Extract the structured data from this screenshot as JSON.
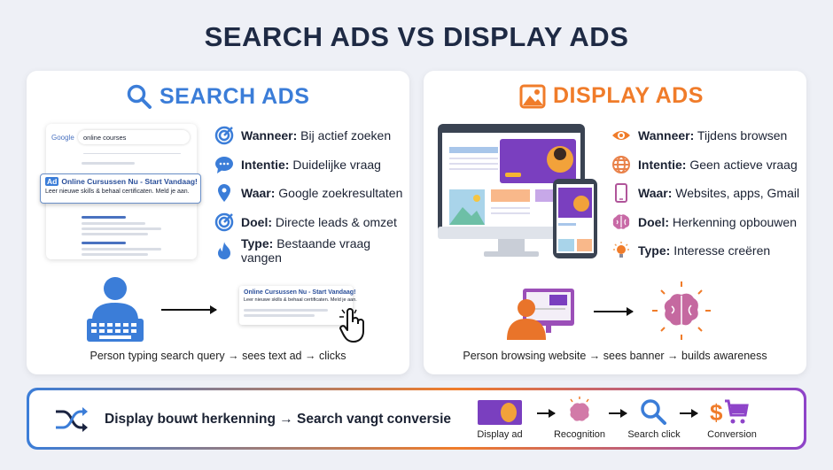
{
  "title": "SEARCH ADS VS DISPLAY ADS",
  "colors": {
    "search": "#3b7dd8",
    "display": "#f07c2a",
    "accent_purple": "#8e44c9",
    "title": "#1e2a44"
  },
  "search": {
    "heading": "SEARCH ADS",
    "icon": "search-icon",
    "mock": {
      "logo": "Google",
      "query": "online courses",
      "ad_badge": "Ad",
      "ad_title": "Online Cursussen Nu - Start Vandaag!",
      "ad_desc": "Leer nieuwe skills & behaal certificaten. Meld je aan."
    },
    "features": [
      {
        "icon": "target-icon",
        "label": "Wanneer:",
        "value": "Bij actief zoeken"
      },
      {
        "icon": "chat-icon",
        "label": "Intentie:",
        "value": "Duidelijke vraag"
      },
      {
        "icon": "location-pin-icon",
        "label": "Waar:",
        "value": "Google zoekresultaten"
      },
      {
        "icon": "target-icon",
        "label": "Doel:",
        "value": "Directe leads & omzet"
      },
      {
        "icon": "flame-icon",
        "label": "Type:",
        "value": "Bestaande vraag vangen"
      }
    ],
    "flow_ad_title": "Online Cursussen Nu - Start Vandaag!",
    "flow_ad_desc": "Leer nieuwe skills & behaal certificaten. Meld je aan.",
    "caption": "Person typing search query → sees text ad → clicks"
  },
  "display": {
    "heading": "DISPLAY ADS",
    "icon": "image-icon",
    "features": [
      {
        "icon": "eye-icon",
        "label": "Wanneer:",
        "value": "Tijdens browsen"
      },
      {
        "icon": "globe-icon",
        "label": "Intentie:",
        "value": "Geen actieve vraag"
      },
      {
        "icon": "phone-icon",
        "label": "Waar:",
        "value": "Websites, apps, Gmail"
      },
      {
        "icon": "brain-icon",
        "label": "Doel:",
        "value": "Herkenning opbouwen"
      },
      {
        "icon": "lightbulb-icon",
        "label": "Type:",
        "value": "Interesse creëren"
      }
    ],
    "caption": "Person browsing website → sees banner → builds awareness"
  },
  "banner": {
    "text": "Display bouwt herkenning → Search vangt conversie",
    "steps": [
      {
        "icon": "display-ad-icon",
        "label": "Display ad"
      },
      {
        "icon": "brain-icon",
        "label": "Recognition"
      },
      {
        "icon": "search-icon",
        "label": "Search click"
      },
      {
        "icon": "dollar-cart-icon",
        "label": "Conversion"
      }
    ]
  }
}
